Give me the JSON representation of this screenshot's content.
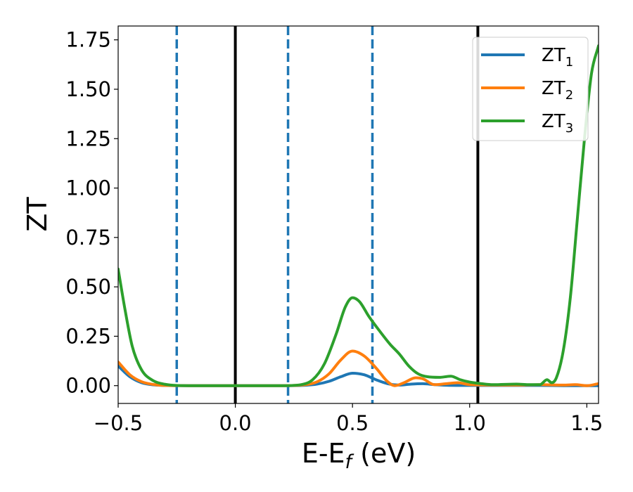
{
  "chart_data": {
    "type": "line",
    "title": "",
    "xlabel": "E-E",
    "xlabel_sub": "f",
    "xlabel_unit": " (eV)",
    "ylabel": "ZT",
    "xlim": [
      -0.5,
      1.55
    ],
    "ylim": [
      -0.09,
      1.82
    ],
    "x_ticks": [
      -0.5,
      0.0,
      0.5,
      1.0,
      1.5
    ],
    "x_tick_labels": [
      "−0.5",
      "0.0",
      "0.5",
      "1.0",
      "1.5"
    ],
    "y_ticks": [
      0.0,
      0.25,
      0.5,
      0.75,
      1.0,
      1.25,
      1.5,
      1.75
    ],
    "y_tick_labels": [
      "0.00",
      "0.25",
      "0.50",
      "0.75",
      "1.00",
      "1.25",
      "1.50",
      "1.75"
    ],
    "grid": false,
    "legend_position": "top-right",
    "vlines": [
      {
        "x": -0.25,
        "style": "dashed",
        "color": "#1f77b4"
      },
      {
        "x": 0.0,
        "style": "solid",
        "color": "#000000"
      },
      {
        "x": 0.225,
        "style": "dashed",
        "color": "#1f77b4"
      },
      {
        "x": 0.585,
        "style": "dashed",
        "color": "#1f77b4"
      },
      {
        "x": 1.035,
        "style": "solid",
        "color": "#000000"
      }
    ],
    "series": [
      {
        "name": "ZT",
        "name_sub": "1",
        "color": "#1f77b4",
        "points": [
          [
            -0.5,
            0.1
          ],
          [
            -0.45,
            0.045
          ],
          [
            -0.4,
            0.015
          ],
          [
            -0.35,
            0.004
          ],
          [
            -0.3,
            0.001
          ],
          [
            -0.2,
            0.0
          ],
          [
            0.0,
            0.0
          ],
          [
            0.2,
            0.0
          ],
          [
            0.3,
            0.002
          ],
          [
            0.35,
            0.008
          ],
          [
            0.4,
            0.022
          ],
          [
            0.45,
            0.045
          ],
          [
            0.5,
            0.063
          ],
          [
            0.55,
            0.055
          ],
          [
            0.6,
            0.03
          ],
          [
            0.65,
            0.01
          ],
          [
            0.7,
            0.003
          ],
          [
            0.75,
            0.008
          ],
          [
            0.8,
            0.01
          ],
          [
            0.85,
            0.005
          ],
          [
            0.9,
            0.002
          ],
          [
            1.0,
            0.001
          ],
          [
            1.1,
            0.001
          ],
          [
            1.2,
            0.001
          ],
          [
            1.3,
            0.001
          ],
          [
            1.4,
            0.0
          ],
          [
            1.5,
            0.0
          ],
          [
            1.55,
            0.0
          ]
        ]
      },
      {
        "name": "ZT",
        "name_sub": "2",
        "color": "#ff7f0e",
        "points": [
          [
            -0.5,
            0.12
          ],
          [
            -0.45,
            0.055
          ],
          [
            -0.4,
            0.02
          ],
          [
            -0.35,
            0.006
          ],
          [
            -0.3,
            0.001
          ],
          [
            -0.2,
            0.0
          ],
          [
            0.0,
            0.0
          ],
          [
            0.2,
            0.0
          ],
          [
            0.3,
            0.005
          ],
          [
            0.35,
            0.02
          ],
          [
            0.4,
            0.06
          ],
          [
            0.45,
            0.13
          ],
          [
            0.5,
            0.175
          ],
          [
            0.55,
            0.15
          ],
          [
            0.6,
            0.09
          ],
          [
            0.65,
            0.02
          ],
          [
            0.68,
            0.0
          ],
          [
            0.72,
            0.015
          ],
          [
            0.77,
            0.04
          ],
          [
            0.8,
            0.035
          ],
          [
            0.85,
            0.005
          ],
          [
            0.9,
            0.01
          ],
          [
            0.95,
            0.015
          ],
          [
            1.0,
            0.005
          ],
          [
            1.1,
            0.003
          ],
          [
            1.2,
            0.003
          ],
          [
            1.3,
            0.005
          ],
          [
            1.4,
            0.003
          ],
          [
            1.45,
            0.005
          ],
          [
            1.5,
            0.0
          ],
          [
            1.55,
            0.01
          ]
        ]
      },
      {
        "name": "ZT",
        "name_sub": "3",
        "color": "#2ca02c",
        "points": [
          [
            -0.5,
            0.59
          ],
          [
            -0.47,
            0.38
          ],
          [
            -0.44,
            0.2
          ],
          [
            -0.4,
            0.08
          ],
          [
            -0.35,
            0.025
          ],
          [
            -0.3,
            0.007
          ],
          [
            -0.25,
            0.001
          ],
          [
            -0.2,
            0.0
          ],
          [
            0.0,
            0.0
          ],
          [
            0.2,
            0.0
          ],
          [
            0.28,
            0.005
          ],
          [
            0.33,
            0.03
          ],
          [
            0.38,
            0.11
          ],
          [
            0.43,
            0.26
          ],
          [
            0.47,
            0.4
          ],
          [
            0.5,
            0.445
          ],
          [
            0.53,
            0.425
          ],
          [
            0.57,
            0.35
          ],
          [
            0.62,
            0.27
          ],
          [
            0.66,
            0.21
          ],
          [
            0.7,
            0.16
          ],
          [
            0.74,
            0.1
          ],
          [
            0.78,
            0.06
          ],
          [
            0.82,
            0.045
          ],
          [
            0.87,
            0.042
          ],
          [
            0.92,
            0.048
          ],
          [
            0.96,
            0.03
          ],
          [
            1.0,
            0.018
          ],
          [
            1.05,
            0.01
          ],
          [
            1.1,
            0.005
          ],
          [
            1.2,
            0.008
          ],
          [
            1.25,
            0.005
          ],
          [
            1.3,
            0.005
          ],
          [
            1.33,
            0.03
          ],
          [
            1.35,
            0.015
          ],
          [
            1.37,
            0.04
          ],
          [
            1.4,
            0.18
          ],
          [
            1.43,
            0.45
          ],
          [
            1.46,
            0.85
          ],
          [
            1.49,
            1.25
          ],
          [
            1.52,
            1.58
          ],
          [
            1.55,
            1.72
          ]
        ]
      }
    ]
  }
}
